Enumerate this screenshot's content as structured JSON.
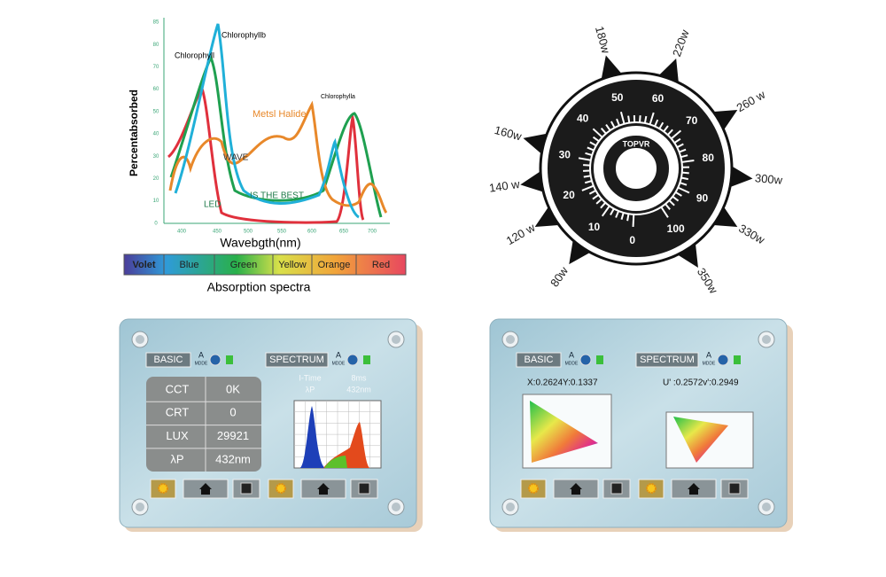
{
  "spectrum_chart": {
    "y_label": "Percentabsorbed",
    "x_label": "Wavebgth(nm)",
    "yticks": [
      "85",
      "80",
      "70",
      "60",
      "50",
      "40",
      "30",
      "20",
      "10",
      "0"
    ],
    "xticks": [
      "400",
      "450",
      "500",
      "550",
      "600",
      "650",
      "700"
    ],
    "annotations": {
      "chlorophyllb": "Chlorophyllb",
      "chlorophyll": "Chlorophyll",
      "chlorophylla": "Chlorophylla",
      "metal_halide": "Metsl Halide",
      "wave": "WAVE",
      "best": "IS THE BEST",
      "led": "LED"
    },
    "color_bands": [
      "Volet",
      "Blue",
      "Green",
      "Yellow",
      "Orange",
      "Red"
    ],
    "caption": "Absorption spectra"
  },
  "dial": {
    "center": "TOPVR",
    "scale": [
      "0",
      "10",
      "20",
      "30",
      "40",
      "50",
      "60",
      "70",
      "80",
      "90",
      "100"
    ],
    "outer": [
      "80w",
      "120 w",
      "140 w",
      "160w",
      "180w",
      "220w",
      "260 w",
      "300w",
      "330w",
      "350w"
    ]
  },
  "panel_left": {
    "tabs": [
      "BASIC",
      "SPECTRUM"
    ],
    "mode": [
      "A",
      "MDDE"
    ],
    "table": [
      [
        "CCT",
        "0K"
      ],
      [
        "CRT",
        "0"
      ],
      [
        "LUX",
        "29921"
      ],
      [
        "λP",
        "432nm"
      ]
    ],
    "info": [
      [
        "I-Time",
        "8ms"
      ],
      [
        "λP",
        "432nm"
      ]
    ]
  },
  "panel_right": {
    "tabs": [
      "BASIC",
      "SPECTRUM"
    ],
    "mode": [
      "A",
      "MDDE"
    ],
    "coords": [
      "X:0.2624Y:0.1337",
      "U' :0.2572v':0.2949"
    ]
  }
}
